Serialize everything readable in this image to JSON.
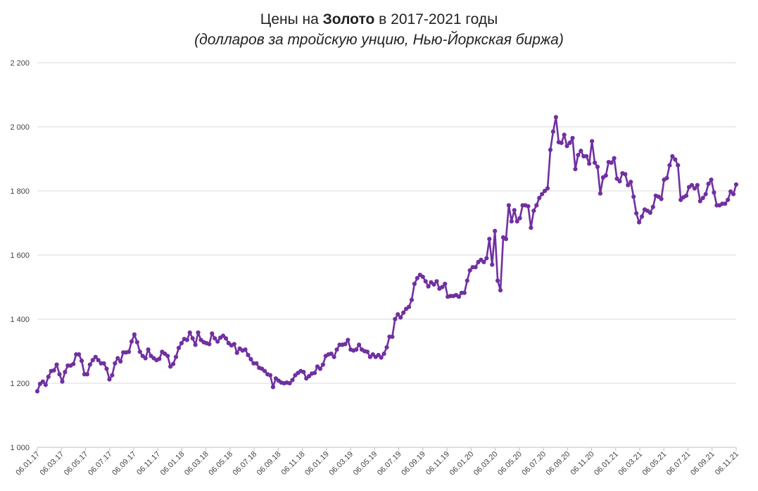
{
  "title": {
    "prefix": "Цены на ",
    "bold": "Золото",
    "suffix": " в 2017-2021 годы",
    "subtitle": "(долларов за тройскую унцию, Нью-Йоркская биржа)"
  },
  "chart_data": {
    "type": "line",
    "title": "Цены на Золото в 2017-2021 годы",
    "subtitle": "(долларов за тройскую унцию, Нью-Йоркская биржа)",
    "xlabel": "",
    "ylabel": "",
    "ylim": [
      1000,
      2200
    ],
    "yticks": [
      1000,
      1200,
      1400,
      1600,
      1800,
      2000,
      2200
    ],
    "ytick_labels": [
      "1 000",
      "1 200",
      "1 400",
      "1 600",
      "1 800",
      "2 000",
      "2 200"
    ],
    "xticks": [
      "06.01.17",
      "06.03.17",
      "06.05.17",
      "06.07.17",
      "06.09.17",
      "06.11.17",
      "06.01.18",
      "06.03.18",
      "06.05.18",
      "06.07.18",
      "06.09.18",
      "06.11.18",
      "06.01.19",
      "06.03.19",
      "06.05.19",
      "06.07.19",
      "06.09.19",
      "06.11.19",
      "06.01.20",
      "06.03.20",
      "06.05.20",
      "06.07.20",
      "06.09.20",
      "06.11.20",
      "06.01.21",
      "06.03.21",
      "06.05.21",
      "06.07.21",
      "06.09.21",
      "06.11.21"
    ],
    "grid": "horizontal",
    "line_color": "#7030a0",
    "series": [
      {
        "values": [
          1175,
          1198,
          1205,
          1195,
          1220,
          1238,
          1240,
          1258,
          1228,
          1205,
          1235,
          1255,
          1255,
          1260,
          1290,
          1290,
          1270,
          1228,
          1228,
          1258,
          1272,
          1282,
          1272,
          1262,
          1262,
          1245,
          1212,
          1225,
          1262,
          1278,
          1268,
          1296,
          1296,
          1298,
          1330,
          1352,
          1328,
          1298,
          1285,
          1278,
          1305,
          1285,
          1278,
          1272,
          1276,
          1298,
          1292,
          1285,
          1252,
          1260,
          1282,
          1310,
          1325,
          1338,
          1335,
          1358,
          1340,
          1320,
          1358,
          1335,
          1328,
          1325,
          1322,
          1355,
          1340,
          1330,
          1342,
          1348,
          1340,
          1325,
          1318,
          1322,
          1295,
          1308,
          1302,
          1305,
          1288,
          1275,
          1262,
          1262,
          1248,
          1245,
          1238,
          1228,
          1225,
          1188,
          1215,
          1208,
          1202,
          1200,
          1202,
          1200,
          1210,
          1225,
          1232,
          1238,
          1235,
          1215,
          1222,
          1230,
          1232,
          1252,
          1245,
          1258,
          1285,
          1290,
          1292,
          1282,
          1305,
          1320,
          1320,
          1322,
          1335,
          1305,
          1302,
          1305,
          1320,
          1305,
          1300,
          1298,
          1282,
          1290,
          1282,
          1288,
          1280,
          1292,
          1312,
          1345,
          1345,
          1400,
          1415,
          1405,
          1420,
          1432,
          1438,
          1460,
          1510,
          1528,
          1538,
          1532,
          1518,
          1502,
          1515,
          1508,
          1518,
          1495,
          1500,
          1510,
          1470,
          1472,
          1472,
          1475,
          1470,
          1482,
          1482,
          1520,
          1552,
          1562,
          1562,
          1578,
          1585,
          1578,
          1590,
          1650,
          1570,
          1675,
          1520,
          1490,
          1655,
          1650,
          1755,
          1705,
          1740,
          1705,
          1715,
          1755,
          1755,
          1752,
          1685,
          1738,
          1755,
          1778,
          1790,
          1800,
          1808,
          1928,
          1985,
          2030,
          1952,
          1950,
          1975,
          1940,
          1950,
          1965,
          1868,
          1912,
          1925,
          1908,
          1908,
          1885,
          1955,
          1888,
          1875,
          1792,
          1842,
          1848,
          1890,
          1888,
          1902,
          1838,
          1830,
          1855,
          1852,
          1818,
          1828,
          1782,
          1730,
          1702,
          1720,
          1742,
          1738,
          1732,
          1750,
          1785,
          1782,
          1775,
          1835,
          1840,
          1880,
          1908,
          1898,
          1880,
          1772,
          1780,
          1785,
          1812,
          1818,
          1808,
          1818,
          1768,
          1778,
          1790,
          1822,
          1835,
          1795,
          1755,
          1755,
          1760,
          1760,
          1772,
          1798,
          1790,
          1820
        ]
      }
    ]
  }
}
